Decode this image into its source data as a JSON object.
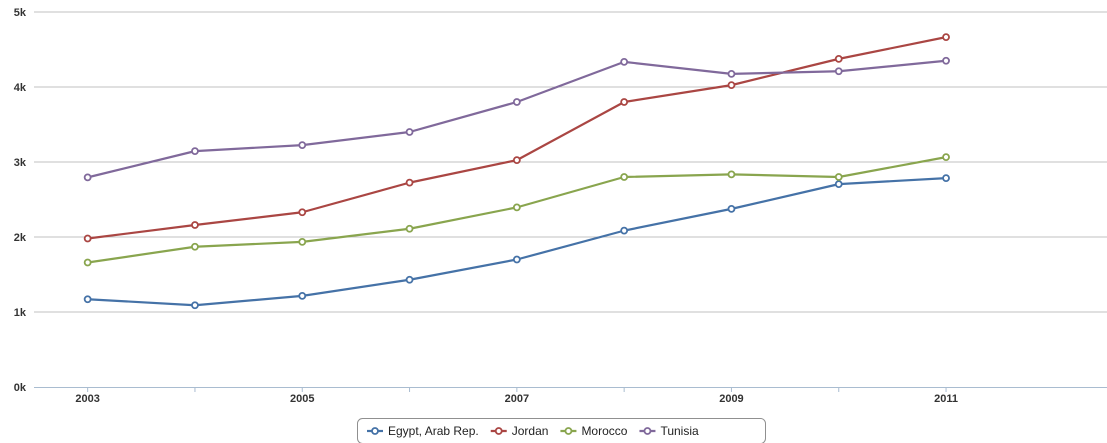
{
  "chart_data": {
    "type": "line",
    "x": [
      2003,
      2004,
      2005,
      2006,
      2007,
      2008,
      2009,
      2010,
      2011
    ],
    "x_tick_labels": [
      "2003",
      "2005",
      "2007",
      "2009",
      "2011"
    ],
    "xlim": [
      2002.5,
      2012.5
    ],
    "y_tick_labels": [
      "0k",
      "1k",
      "2k",
      "3k",
      "4k",
      "5k"
    ],
    "ylim": [
      0,
      5000
    ],
    "grid": "horizontal",
    "legend_position": "bottom-center",
    "series": [
      {
        "name": "Egypt, Arab Rep.",
        "color": "#4572a7",
        "values": [
          1170,
          1090,
          1215,
          1430,
          1700,
          2085,
          2375,
          2705,
          2785
        ]
      },
      {
        "name": "Jordan",
        "color": "#aa4643",
        "values": [
          1980,
          2160,
          2330,
          2725,
          3025,
          3800,
          4025,
          4375,
          4665
        ]
      },
      {
        "name": "Morocco",
        "color": "#89a54e",
        "values": [
          1660,
          1870,
          1935,
          2110,
          2395,
          2800,
          2835,
          2800,
          3065
        ]
      },
      {
        "name": "Tunisia",
        "color": "#80699b",
        "values": [
          2795,
          3145,
          3225,
          3400,
          3800,
          4335,
          4175,
          4210,
          4350
        ]
      }
    ]
  }
}
